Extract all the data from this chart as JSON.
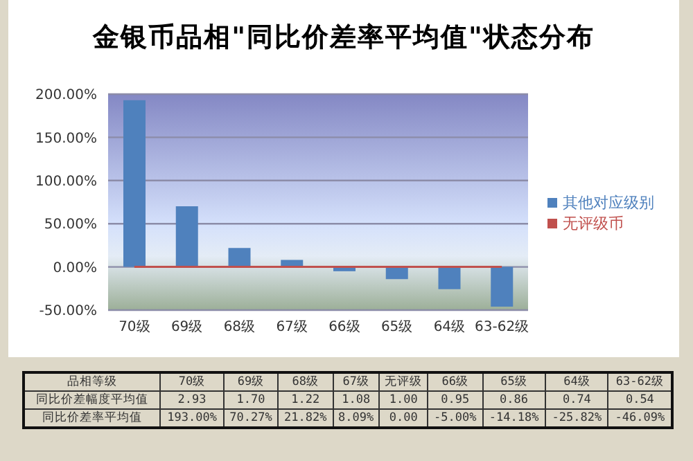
{
  "chart_data": [
    {
      "type": "bar",
      "title": "金银币品相\"同比价差率平均值\"状态分布",
      "categories": [
        "70级",
        "69级",
        "68级",
        "67级",
        "66级",
        "65级",
        "64级",
        "63-62级"
      ],
      "series": [
        {
          "name": "其他对应级别",
          "color": "#4f81bd",
          "values": [
            193.0,
            70.27,
            21.82,
            8.09,
            -5.0,
            -14.18,
            -25.82,
            -46.09
          ]
        },
        {
          "name": "无评级币",
          "type": "line",
          "color": "#c0504d",
          "values": [
            0,
            0,
            0,
            0,
            0,
            0,
            0,
            0
          ]
        }
      ],
      "ylim": [
        -50,
        200
      ],
      "yticks": [
        {
          "value": -50,
          "label": "-50.00%"
        },
        {
          "value": 0,
          "label": "0.00%"
        },
        {
          "value": 50,
          "label": "50.00%"
        },
        {
          "value": 100,
          "label": "100.00%"
        },
        {
          "value": 150,
          "label": "150.00%"
        },
        {
          "value": 200,
          "label": "200.00%"
        }
      ],
      "grid": "y",
      "legend": "right",
      "marker": "none"
    },
    {
      "type": "other",
      "xlabel": "品相等级",
      "categories": [
        "70级",
        "69级",
        "68级",
        "67级",
        "无评级",
        "66级",
        "65级",
        "64级",
        "63-62级"
      ],
      "series": [
        {
          "name": "同比价差幅度平均值",
          "values": [
            2.93,
            1.7,
            1.22,
            1.08,
            1.0,
            0.95,
            0.86,
            0.74,
            0.54
          ],
          "value_labels": [
            "2.93",
            "1.70",
            "1.22",
            "1.08",
            "1.00",
            "0.95",
            "0.86",
            "0.74",
            "0.54"
          ]
        },
        {
          "name": "同比价差率平均值",
          "values": [
            193.0,
            70.27,
            21.82,
            8.09,
            0,
            -5.0,
            -14.18,
            -25.82,
            -46.09
          ],
          "value_labels": [
            "193.00%",
            "70.27%",
            "21.82%",
            "8.09%",
            "0.00",
            "-5.00%",
            "-14.18%",
            "-25.82%",
            "-46.09%"
          ]
        }
      ]
    }
  ]
}
